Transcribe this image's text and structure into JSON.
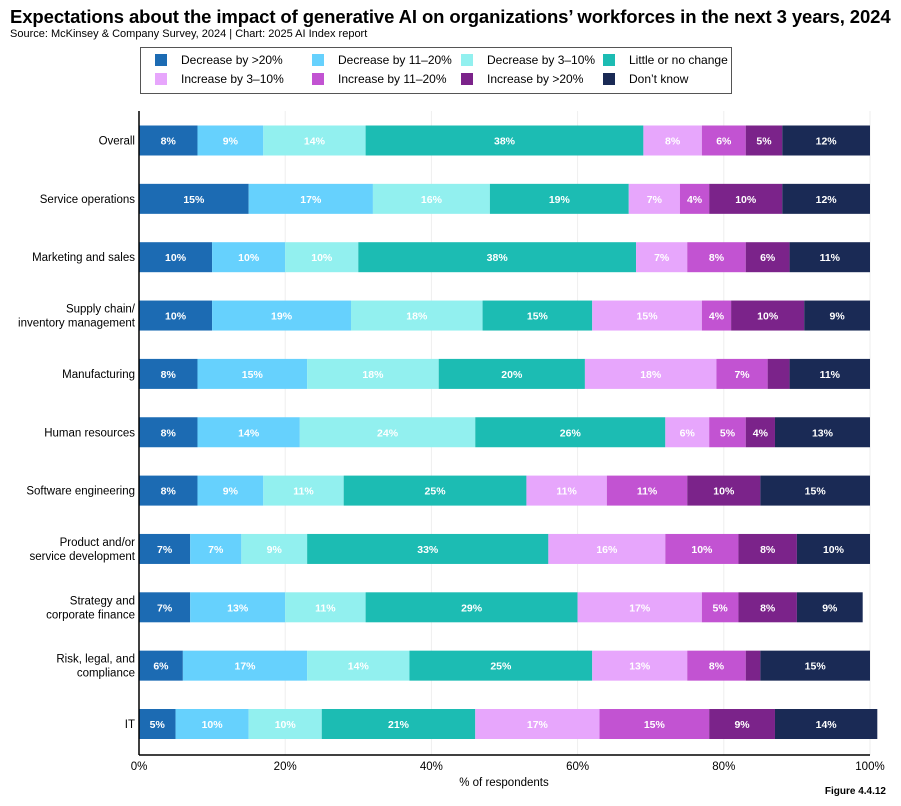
{
  "header": {
    "title": "Expectations about the impact of generative AI on organizations’ workforces in the next 3 years, 2024",
    "subtitle": "Source: McKinsey & Company Survey, 2024 | Chart: 2025 AI Index report"
  },
  "figure_label": "Figure 4.4.12",
  "chart_data": {
    "type": "bar",
    "orientation": "horizontal",
    "stacked": true,
    "title": "Expectations about the impact of generative AI on organizations’ workforces in the next 3 years, 2024",
    "subtitle": "Source: McKinsey & Company Survey, 2024 | Chart: 2025 AI Index report",
    "xlabel": "% of respondents",
    "ylabel": "",
    "xlim": [
      0,
      100
    ],
    "xticks": [
      0,
      20,
      40,
      60,
      80,
      100
    ],
    "xtick_labels": [
      "0%",
      "20%",
      "40%",
      "60%",
      "80%",
      "100%"
    ],
    "grid": true,
    "legend_position": "top",
    "categories": [
      [
        "Overall"
      ],
      [
        "Service operations"
      ],
      [
        "Marketing and sales"
      ],
      [
        "Supply chain/",
        "inventory management"
      ],
      [
        "Manufacturing"
      ],
      [
        "Human resources"
      ],
      [
        "Software engineering"
      ],
      [
        "Product and/or",
        "service development"
      ],
      [
        "Strategy and",
        "corporate finance"
      ],
      [
        "Risk, legal, and",
        "compliance"
      ],
      [
        "IT"
      ]
    ],
    "series": [
      {
        "name": "Decrease by >20%",
        "color": "#1c6bb3",
        "label_color": "#ffffff",
        "values": [
          8,
          15,
          10,
          10,
          8,
          8,
          8,
          7,
          7,
          6,
          5
        ],
        "labels": [
          "8%",
          "15%",
          "10%",
          "10%",
          "8%",
          "8%",
          "8%",
          "7%",
          "7%",
          "6%",
          "5%"
        ]
      },
      {
        "name": "Decrease by 11–20%",
        "color": "#66d1fd",
        "label_color": "#ffffff",
        "values": [
          9,
          17,
          10,
          19,
          15,
          14,
          9,
          7,
          13,
          17,
          10
        ],
        "labels": [
          "9%",
          "17%",
          "10%",
          "19%",
          "15%",
          "14%",
          "9%",
          "7%",
          "13%",
          "17%",
          "10%"
        ]
      },
      {
        "name": "Decrease by 3–10%",
        "color": "#92f0ef",
        "label_color": "#ffffff",
        "values": [
          14,
          16,
          10,
          18,
          18,
          24,
          11,
          9,
          11,
          14,
          10
        ],
        "labels": [
          "14%",
          "16%",
          "10%",
          "18%",
          "18%",
          "24%",
          "11%",
          "9%",
          "11%",
          "14%",
          "10%"
        ]
      },
      {
        "name": "Little or no change",
        "color": "#1cbcb3",
        "label_color": "#ffffff",
        "values": [
          38,
          19,
          38,
          15,
          20,
          26,
          25,
          33,
          29,
          25,
          21
        ],
        "labels": [
          "38%",
          "19%",
          "38%",
          "15%",
          "20%",
          "26%",
          "25%",
          "33%",
          "29%",
          "25%",
          "21%"
        ]
      },
      {
        "name": "Increase by 3–10%",
        "color": "#e7a6fc",
        "label_color": "#ffffff",
        "values": [
          8,
          7,
          7,
          15,
          18,
          6,
          11,
          16,
          17,
          13,
          17
        ],
        "labels": [
          "8%",
          "7%",
          "7%",
          "15%",
          "18%",
          "6%",
          "11%",
          "16%",
          "17%",
          "13%",
          "17%"
        ]
      },
      {
        "name": "Increase by 11–20%",
        "color": "#c253d2",
        "label_color": "#ffffff",
        "values": [
          6,
          4,
          8,
          4,
          7,
          5,
          11,
          10,
          5,
          8,
          15
        ],
        "labels": [
          "6%",
          "4%",
          "8%",
          "4%",
          "7%",
          "5%",
          "11%",
          "10%",
          "5%",
          "8%",
          "15%"
        ]
      },
      {
        "name": "Increase by >20%",
        "color": "#7b238a",
        "label_color": "#ffffff",
        "values": [
          5,
          10,
          6,
          10,
          3,
          4,
          10,
          8,
          8,
          2,
          9
        ],
        "labels": [
          "5%",
          "10%",
          "6%",
          "10%",
          "",
          "4%",
          "10%",
          "8%",
          "8%",
          "",
          "9%"
        ]
      },
      {
        "name": "Don’t know",
        "color": "#1a2a55",
        "label_color": "#ffffff",
        "values": [
          12,
          12,
          11,
          9,
          11,
          13,
          15,
          10,
          9,
          15,
          14
        ],
        "labels": [
          "12%",
          "12%",
          "11%",
          "9%",
          "11%",
          "13%",
          "15%",
          "10%",
          "9%",
          "15%",
          "14%"
        ]
      }
    ]
  }
}
